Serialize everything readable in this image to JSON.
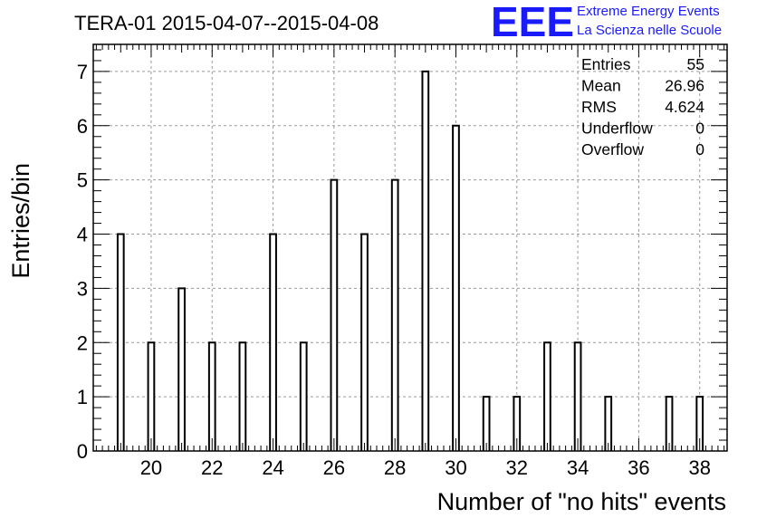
{
  "chart_data": {
    "type": "bar",
    "title": "TERA-01 2015-04-07--2015-04-08",
    "xlabel": "Number of \"no hits\" events",
    "ylabel": "Entries/bin",
    "xlim": [
      18.1,
      38.9
    ],
    "ylim": [
      0,
      7.5
    ],
    "x_ticks": [
      20,
      22,
      24,
      26,
      28,
      30,
      32,
      34,
      36,
      38
    ],
    "y_ticks": [
      0,
      1,
      2,
      3,
      4,
      5,
      6,
      7
    ],
    "grid": true,
    "bin_width": 0.2,
    "bins": [
      {
        "x": 19,
        "value": 4
      },
      {
        "x": 20,
        "value": 2
      },
      {
        "x": 21,
        "value": 3
      },
      {
        "x": 22,
        "value": 2
      },
      {
        "x": 23,
        "value": 2
      },
      {
        "x": 24,
        "value": 4
      },
      {
        "x": 25,
        "value": 2
      },
      {
        "x": 26,
        "value": 5
      },
      {
        "x": 27,
        "value": 4
      },
      {
        "x": 28,
        "value": 5
      },
      {
        "x": 29,
        "value": 7
      },
      {
        "x": 30,
        "value": 6
      },
      {
        "x": 31,
        "value": 1
      },
      {
        "x": 32,
        "value": 1
      },
      {
        "x": 33,
        "value": 2
      },
      {
        "x": 34,
        "value": 2
      },
      {
        "x": 35,
        "value": 1
      },
      {
        "x": 37,
        "value": 1
      },
      {
        "x": 38,
        "value": 1
      }
    ],
    "stats": [
      {
        "label": "Entries",
        "value": "55"
      },
      {
        "label": "Mean",
        "value": "26.96"
      },
      {
        "label": "RMS",
        "value": "4.624"
      },
      {
        "label": "Underflow",
        "value": "0"
      },
      {
        "label": "Overflow",
        "value": "0"
      }
    ]
  },
  "logo": {
    "mark": "EEE",
    "line1": "Extreme Energy Events",
    "line2": "La Scienza nelle Scuole",
    "color": "#1a1aff"
  }
}
